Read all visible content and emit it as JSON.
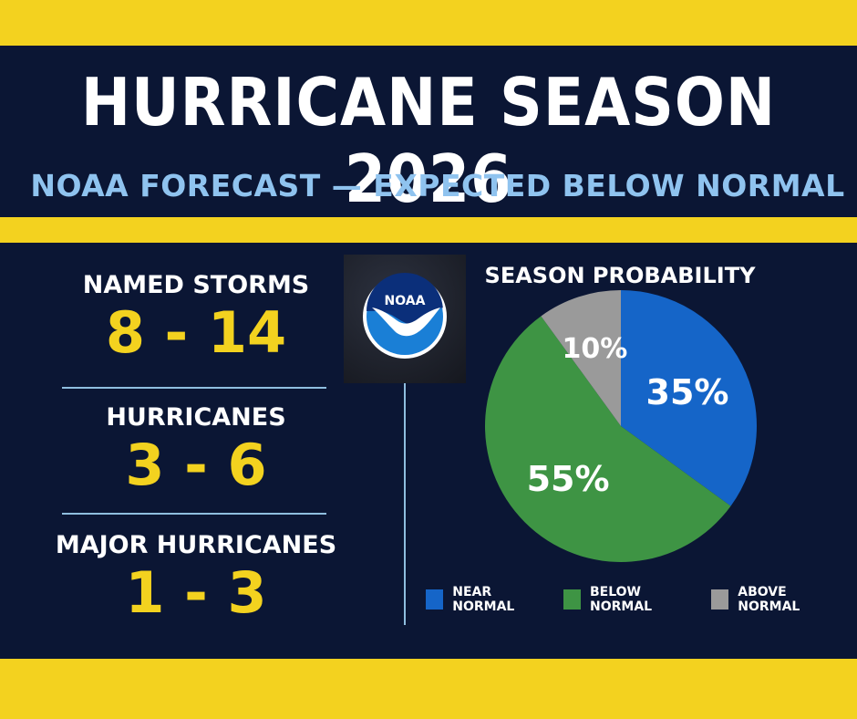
{
  "header": {
    "title": "HURRICANE SEASON 2026",
    "subtitle": "NOAA FORECAST — EXPECTED BELOW NORMAL"
  },
  "stats": [
    {
      "label": "NAMED STORMS",
      "value": "8 - 14"
    },
    {
      "label": "HURRICANES",
      "value": "3 - 6"
    },
    {
      "label": "MAJOR HURRICANES",
      "value": "1 - 3"
    }
  ],
  "logo": {
    "text": "NOAA",
    "icon": "noaa-logo-icon"
  },
  "colors": {
    "background": "#0b1634",
    "accent_yellow": "#f3d21f",
    "subtitle_blue": "#8fc3ef"
  },
  "chart_data": {
    "type": "pie",
    "title": "SEASON PROBABILITY",
    "slices": [
      {
        "name": "NEAR NORMAL",
        "value": 35,
        "label": "35%",
        "color": "#1565c8"
      },
      {
        "name": "BELOW NORMAL",
        "value": 55,
        "label": "55%",
        "color": "#3e9444"
      },
      {
        "name": "ABOVE NORMAL",
        "value": 10,
        "label": "10%",
        "color": "#9a9a9a"
      }
    ],
    "legend_position": "bottom"
  }
}
